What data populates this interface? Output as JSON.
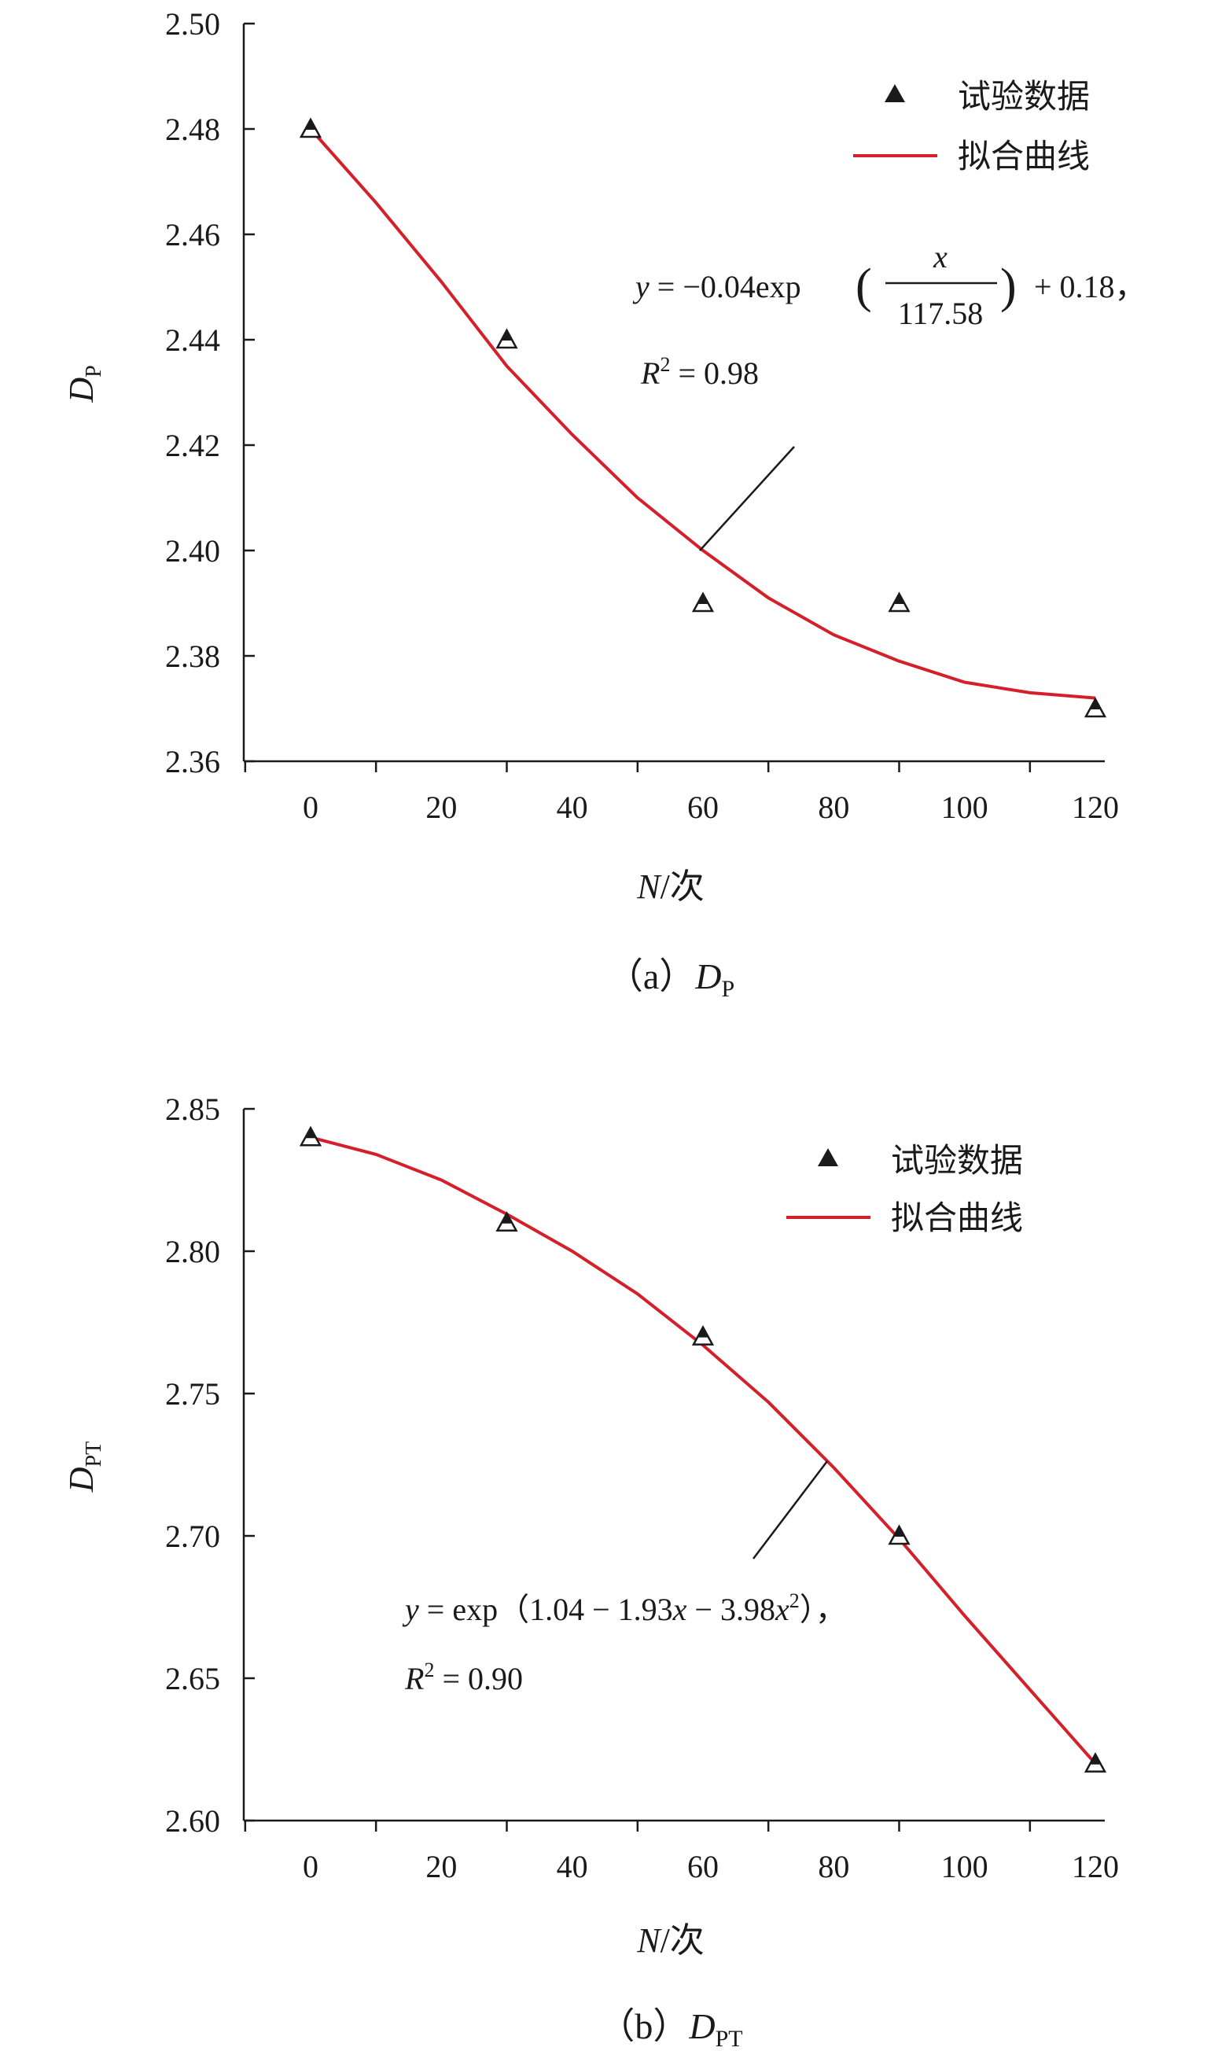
{
  "colors": {
    "fit_line": "#d4202a",
    "marker": "#1a1a1a",
    "axis": "#1a1a1a"
  },
  "chart_data": [
    {
      "type": "scatter",
      "x_var": "N",
      "x_unit": "次",
      "y_var": "D",
      "y_sub": "P",
      "caption_prefix": "（a）",
      "xlim": [
        0,
        120
      ],
      "ylim": [
        2.36,
        2.5
      ],
      "xticks": [
        "0",
        "20",
        "40",
        "60",
        "80",
        "100",
        "120"
      ],
      "yticks": [
        "2.36",
        "2.38",
        "2.40",
        "2.42",
        "2.44",
        "2.46",
        "2.48",
        "2.50"
      ],
      "legend_position": "top-right",
      "series": [
        {
          "name": "试验数据",
          "kind": "points",
          "x": [
            0,
            30,
            60,
            90,
            120
          ],
          "y": [
            2.48,
            2.44,
            2.39,
            2.39,
            2.37
          ]
        },
        {
          "name": "拟合曲线",
          "kind": "line",
          "x": [
            0,
            10,
            20,
            30,
            40,
            50,
            60,
            70,
            80,
            90,
            100,
            110,
            120
          ],
          "y": [
            2.48,
            2.466,
            2.451,
            2.435,
            2.422,
            2.41,
            2.4,
            2.391,
            2.384,
            2.379,
            2.375,
            2.373,
            2.372
          ]
        }
      ],
      "equation": {
        "prefix": "= −0.04exp",
        "fraction_num": "x",
        "fraction_den": "117.58",
        "suffix": "+ 0.18，",
        "r2_value": "= 0.98"
      }
    },
    {
      "type": "scatter",
      "x_var": "N",
      "x_unit": "次",
      "y_var": "D",
      "y_sub": "PT",
      "caption_prefix": "（b）",
      "xlim": [
        0,
        120
      ],
      "ylim": [
        2.6,
        2.85
      ],
      "xticks": [
        "0",
        "20",
        "40",
        "60",
        "80",
        "100",
        "120"
      ],
      "yticks": [
        "2.60",
        "2.65",
        "2.70",
        "2.75",
        "2.80",
        "2.85"
      ],
      "legend_position": "top-right",
      "series": [
        {
          "name": "试验数据",
          "kind": "points",
          "x": [
            0,
            30,
            60,
            90,
            120
          ],
          "y": [
            2.84,
            2.81,
            2.77,
            2.7,
            2.62
          ]
        },
        {
          "name": "拟合曲线",
          "kind": "line",
          "x": [
            0,
            10,
            20,
            30,
            40,
            50,
            60,
            70,
            80,
            90,
            100,
            110,
            120
          ],
          "y": [
            2.84,
            2.834,
            2.825,
            2.813,
            2.8,
            2.785,
            2.767,
            2.747,
            2.724,
            2.699,
            2.672,
            2.646,
            2.62
          ]
        }
      ],
      "equation": {
        "line1_rest": "= exp（1.04 − 1.93",
        "line1_x": "x",
        "line1_minus": " − 3.98",
        "line1_x2": "x",
        "line1_end": "），",
        "r2_value": "= 0.90"
      }
    }
  ]
}
